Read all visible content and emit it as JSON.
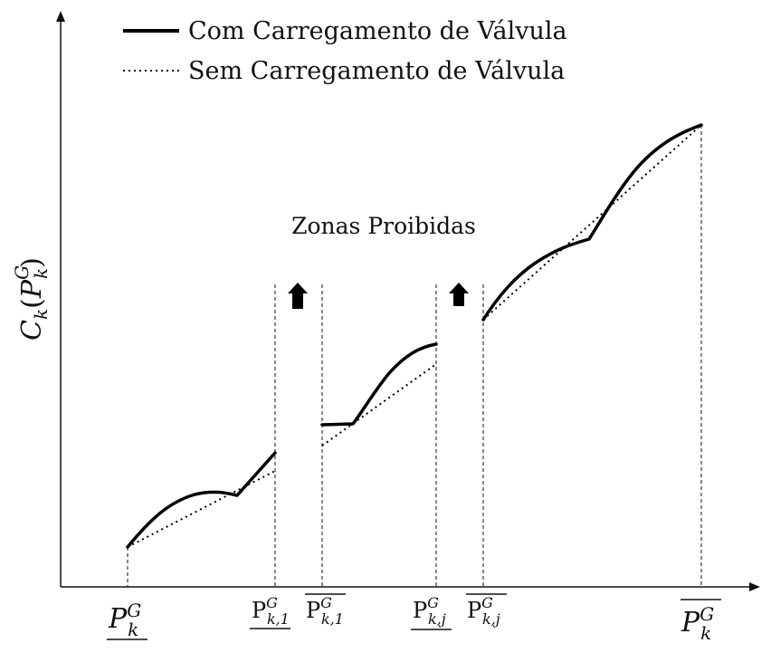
{
  "legend": {
    "with_valve": "Com Carregamento de Válvula",
    "without_valve": "Sem Carregamento de Válvula"
  },
  "zones_label": "Zonas Proibidas",
  "y_axis": {
    "label_main": "C",
    "label_sub": "k",
    "label_open": "(",
    "label_var": "P",
    "label_var_sup": "G",
    "label_var_sub": "k",
    "label_close": ")"
  },
  "x_ticks": [
    {
      "base": "P",
      "sup": "G",
      "sub": "k",
      "mark": "under",
      "style": "italic-large"
    },
    {
      "base": "P",
      "sup": "G",
      "sub": "k,1",
      "mark": "under",
      "style": "roman"
    },
    {
      "base": "P",
      "sup": "G",
      "sub": "k,1",
      "mark": "over",
      "style": "roman"
    },
    {
      "base": "P",
      "sup": "G",
      "sub": "k,j",
      "mark": "under",
      "style": "roman"
    },
    {
      "base": "P",
      "sup": "G",
      "sub": "k,j",
      "mark": "over",
      "style": "roman"
    },
    {
      "base": "P",
      "sup": "G",
      "sub": "k",
      "mark": "over",
      "style": "italic-large"
    }
  ],
  "icons": [
    "up-arrow-icon",
    "up-arrow-icon"
  ],
  "colors": {
    "line": "#000000",
    "background": "#ffffff"
  }
}
